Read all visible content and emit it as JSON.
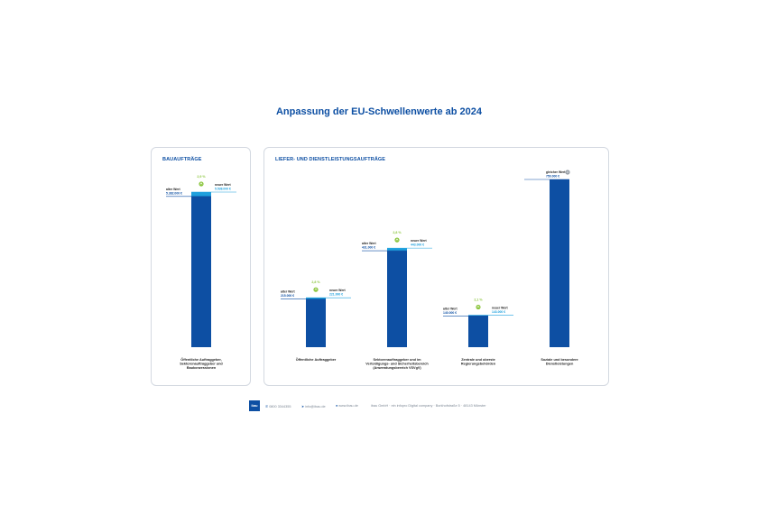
{
  "title": "Anpassung der EU-Schwellenwerte ab 2024",
  "colors": {
    "bar": "#0d4fa3",
    "bar_new": "#1ea0dd",
    "increase": "#8cc63f",
    "neutral": "#9aa1a9",
    "heading": "#0d4fa3"
  },
  "panels": {
    "bau": {
      "heading": "BAUAUFTRÄGE"
    },
    "liefer": {
      "heading": "LIEFER- UND DIENSTLEISTUNGSAUFTRÄGE"
    }
  },
  "chart_data": [
    {
      "type": "bar",
      "title": "BAUAUFTRÄGE",
      "categories": [
        "Öffentliche Auftraggeber, Sektorenauftraggeber und Baukonzessionen"
      ],
      "category_lines": [
        [
          "Öffentliche Auftraggeber,",
          "Sektorenauftraggeber und",
          "Baukonzessionen"
        ]
      ],
      "series": [
        {
          "name": "alter Wert",
          "values": [
            5382000
          ]
        },
        {
          "name": "neuer Wert",
          "values": [
            5538000
          ]
        }
      ],
      "old_labels": [
        "alter Wert\n5.382.000 €"
      ],
      "new_labels": [
        "neuer Wert\n5.538.000 €"
      ],
      "change_labels": [
        "2,9 %"
      ],
      "change_direction": [
        "up"
      ]
    },
    {
      "type": "bar",
      "title": "LIEFER- UND DIENSTLEISTUNGSAUFTRÄGE",
      "categories": [
        "Öffentliche Auftraggeber",
        "Sektorenauftraggeber und im Verteidigungs- und Sicherheitsbereich (Anwendungsbereich VSVgV)",
        "Zentrale und oberste Regierungsbehörden",
        "Soziale und besondere Dienstleistungen"
      ],
      "category_lines": [
        [
          "Öffentliche Auftraggeber"
        ],
        [
          "Sektorenauftraggeber und im",
          "Verteidigungs- und Sicherheitsbereich",
          "(Anwendungsbereich VSVgV)"
        ],
        [
          "Zentrale und oberste",
          "Regierungsbehörden"
        ],
        [
          "Soziale und besondere",
          "Dienstleistungen"
        ]
      ],
      "series": [
        {
          "name": "alter Wert",
          "values": [
            215000,
            431000,
            140000,
            750000
          ]
        },
        {
          "name": "neuer Wert",
          "values": [
            221000,
            443000,
            143000,
            750000
          ]
        }
      ],
      "old_labels": [
        "alter Wert\n215.000 €",
        "alter Wert\n431.000 €",
        "alter Wert\n140.000 €",
        "gleicher Wert\n750.000 €"
      ],
      "new_labels": [
        "neuer Wert\n221.000 €",
        "neuer Wert\n443.000 €",
        "neuer Wert\n143.000 €",
        ""
      ],
      "change_labels": [
        "2,8 %",
        "2,8 %",
        "2,1 %",
        ""
      ],
      "change_direction": [
        "up",
        "up",
        "up",
        "same"
      ]
    }
  ],
  "footer": {
    "logo": "ibau",
    "phone": "0800 3344355",
    "email": "info@ibau.de",
    "web": "www.ibau.de",
    "company": "ibau GmbH · ein infopro Digital company · Borkhofstraße 5 · 48143 Münster"
  }
}
